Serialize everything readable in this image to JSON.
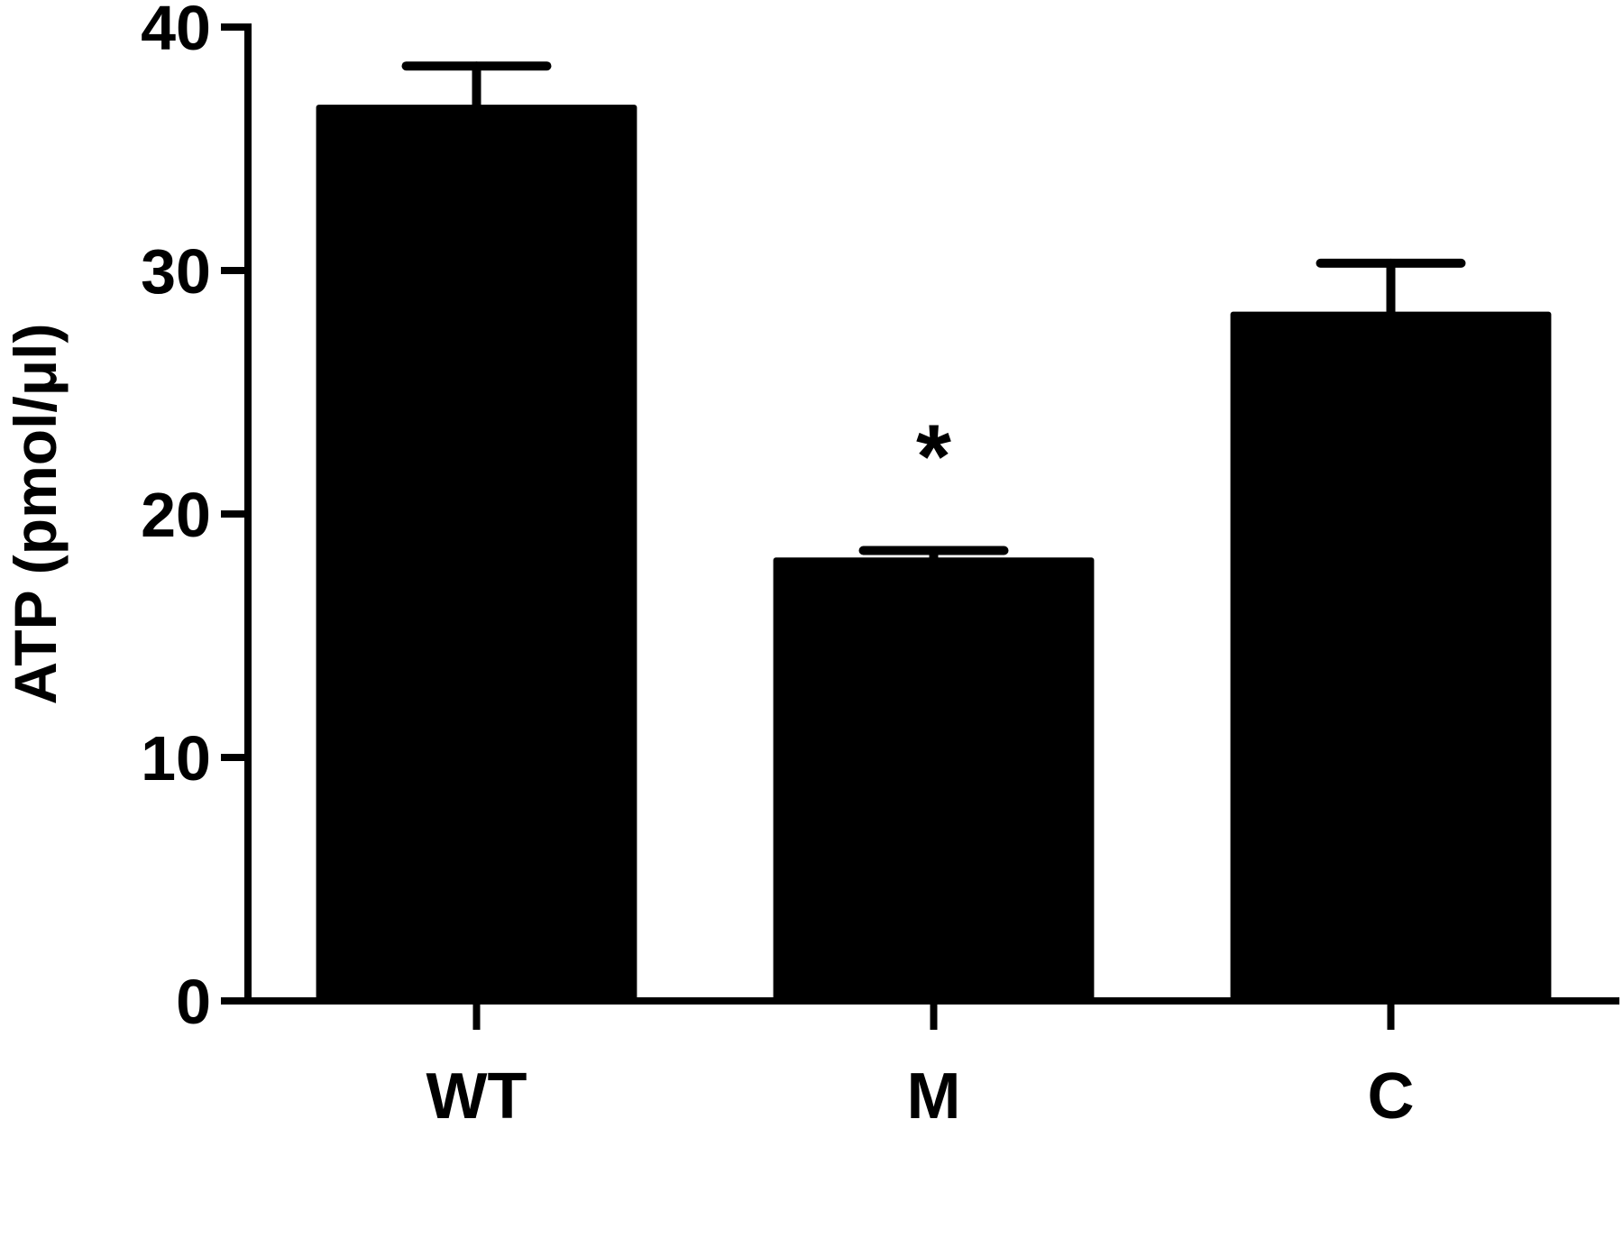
{
  "chart_data": {
    "type": "bar",
    "categories": [
      "WT",
      "M",
      "C"
    ],
    "values": [
      36.7,
      18.1,
      28.2
    ],
    "error_upper": [
      1.7,
      0.4,
      2.1
    ],
    "ylabel": "ATP (pmol/μl)",
    "ylim": [
      0,
      40
    ],
    "yticks": [
      0,
      10,
      20,
      30,
      40
    ],
    "grid": false,
    "bar_color": "#000000",
    "annotations": [
      {
        "category": "M",
        "text": "*"
      }
    ]
  }
}
